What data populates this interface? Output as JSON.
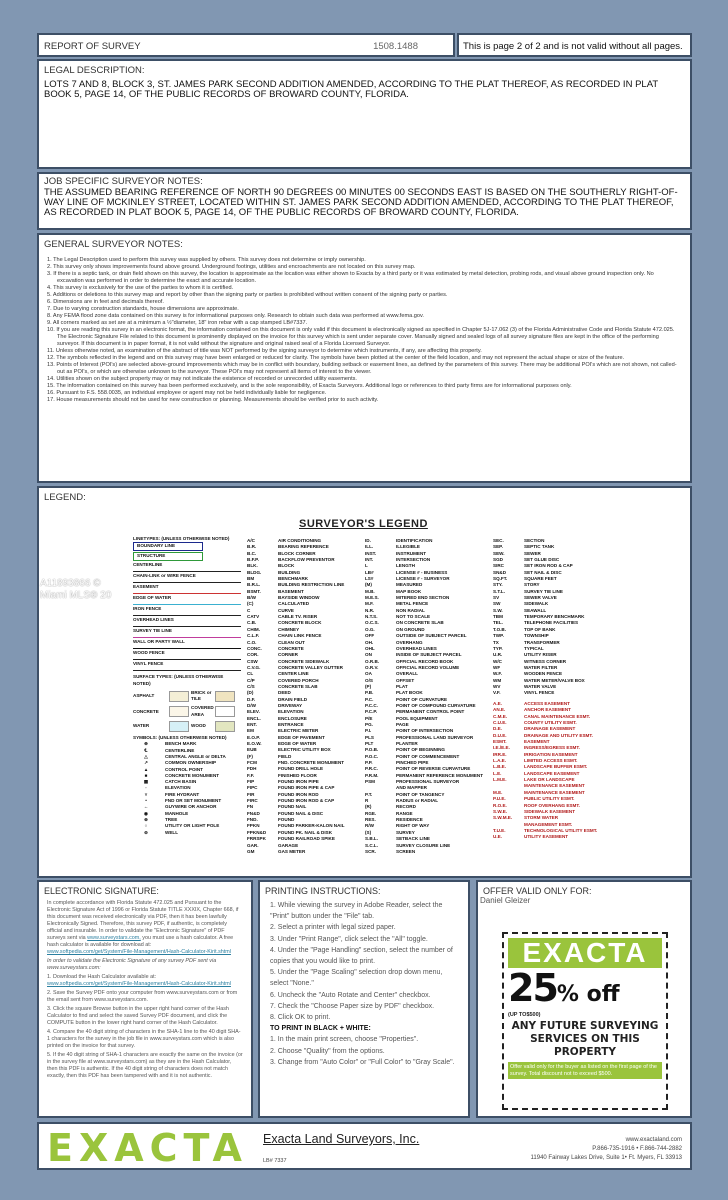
{
  "header": {
    "title": "REPORT OF SURVEY",
    "job_number": "1508.1488",
    "page_notice": "This is page 2 of 2 and is not valid without all pages."
  },
  "legal": {
    "heading": "LEGAL DESCRIPTION:",
    "text": "LOTS 7 AND 8, BLOCK 3, ST. JAMES PARK SECOND ADDITION AMENDED, ACCORDING TO THE PLAT THEREOF, AS RECORDED IN PLAT BOOK 5, PAGE 14, OF THE PUBLIC RECORDS OF BROWARD COUNTY, FLORIDA."
  },
  "job_notes": {
    "heading": "JOB SPECIFIC SURVEYOR NOTES:",
    "text": "THE  ASSUMED BEARING REFERENCE OF NORTH 90 DEGREES 00 MINUTES 00 SECONDS EAST IS BASED ON THE SOUTHERLY RIGHT-OF-WAY LINE OF MCKINLEY STREET, LOCATED WITHIN ST. JAMES PARK SECOND ADDITION AMENDED, ACCORDING TO THE PLAT THEREOF, AS RECORDED IN PLAT BOOK 5, PAGE 14, OF THE PUBLIC RECORDS OF BROWARD COUNTY, FLORIDA."
  },
  "general_notes": {
    "heading": "GENERAL SURVEYOR NOTES:",
    "items": [
      "1.  The Legal Description used to perform this survey was supplied by others. This survey does not determine or imply ownership.",
      "2.  This survey only shows improvements found above ground. Underground footings, utilities and encroachments are not located on this survey map.",
      "3.  If there is a septic tank, or drain field shown on this survey, the location is approximate as the location was either  shown to Exacta by a third party or it was estimated by metal detection, probing rods, and visual above ground inspection only.  No excavation was performed in order to determine the exact and accurate location.",
      "4.  This survey is exclusively for the use of the parties to whom it is certified.",
      "5.  Additions or deletions to this survey map and report by other than the signing party or parties is prohibited without written consent of the signing party or parties.",
      "6.  Dimensions are in feet and decimals thereof.",
      "7.  Due to varying construction standards, house dimensions are approximate.",
      "8.  Any FEMA flood zone data contained on this survey is for informational purposes only. Research to obtain such data was performed at www.fema.gov.",
      "9.  All corners marked as set are at a minimum a ½\"diameter, 18\" iron rebar with a cap stamped LB#7337.",
      "10. If you are reading this survey in an electronic format, the information contained on this document is only valid if this document is electronically signed as specified in Chapter 5J-17.062 (3) of the Florida Administrative Code and Florida Statute 472.025.  The Electronic Signature File related to this document is prominently displayed on the invoice for this survey which is sent under separate cover. Manually signed and sealed logs of all survey signature files are kept in the office of the performing surveyor. If this document is in paper format, it is not valid without the signature and original raised seal of a Florida Licensed Surveyor.",
      "11. Unless otherwise noted, an examination of the abstract of title was NOT performed by the signing surveyor to determine which instruments, if any, are affecting this property.",
      "12. The symbols reflected in the legend and on this survey may have been enlarged or reduced for clarity. The symbols have been plotted at the center of the field location, and may not represent the actual shape or size of the feature.",
      "13. Points of Interest (POI's) are selected above-ground improvements which may be in conflict with boundary, building setback or easement lines, as defined by the parameters of this survey. There may be additional POI's which are not shown, not called-out as POI's, or which are otherwise unknown to the surveyor. These POI's may not represent all items of interest to the viewer.",
      "14. Utilities shown on the subject property may or may not indicate the existence of recorded or unrecorded utility easements.",
      "15. The information contained on this survey has been performed exclusively, and is the sole responsibility, of Exacta Surveyors. Additional logo or references to third party firms are for informational purposes only.",
      "16.  Pursuant to F.S. 558.0035, an individual employee or agent may not be held individually liable for negligence.",
      "17. House measurements should not be used for new construction or planning. Measurements should be verified prior to such activity."
    ]
  },
  "legend": {
    "heading": "LEGEND:",
    "title": "SURVEYOR'S LEGEND",
    "linetypes_heading": "LINETYPES: (UNLESS OTHERWISE NOTED)",
    "linetypes": [
      "BOUNDARY LINE",
      "STRUCTURE",
      "CENTERLINE",
      "CHAIN-LINK or WIRE FENCE",
      "EASEMENT",
      "EDGE OF WATER",
      "IRON FENCE",
      "OVERHEAD LINES",
      "SURVEY TIE LINE",
      "WALL OR PARTY WALL",
      "WOOD FENCE",
      "VINYL FENCE"
    ],
    "surface_heading": "SURFACE TYPES: (UNLESS OTHERWISE NOTED)",
    "surfaces": [
      "ASPHALT",
      "BRICK or TILE",
      "CONCRETE",
      "COVERED AREA",
      "WATER",
      "WOOD"
    ],
    "symbols_heading": "SYMBOLS: (UNLESS OTHERWISE NOTED)",
    "symbols": [
      "BENCH MARK",
      "CENTERLINE",
      "CENTRAL ANGLE or DELTA",
      "COMMON OWNERSHIP",
      "CONTROL POINT",
      "CONCRETE MONUMENT",
      "CATCH BASIN",
      "ELEVATION",
      "FIRE HYDRANT",
      "FND OR SET MONUMENT",
      "GUYWIRE OR ANCHOR",
      "MANHOLE",
      "TREE",
      "UTILITY OR LIGHT POLE",
      "WELL"
    ],
    "col1": [
      [
        "A/C",
        "AIR CONDITIONING"
      ],
      [
        "B.R.",
        "BEARING REFERENCE"
      ],
      [
        "B.C.",
        "BLOCK CORNER"
      ],
      [
        "B.F.P.",
        "BACKFLOW PREVENTOR"
      ],
      [
        "BLK.",
        "BLOCK"
      ],
      [
        "BLDG.",
        "BUILDING"
      ],
      [
        "BM",
        "BENCHMARK"
      ],
      [
        "B.R.L.",
        "BUILDING RESTRICTION LINE"
      ],
      [
        "BSMT.",
        "BASEMENT"
      ],
      [
        "B/W",
        "BAYSIDE WINDOW"
      ],
      [
        "(C)",
        "CALCULATED"
      ],
      [
        "C",
        "CURVE"
      ],
      [
        "CATV",
        "CABLE TV. RISER"
      ],
      [
        "C.B.",
        "CONCRETE BLOCK"
      ],
      [
        "CHIM.",
        "CHIMNEY"
      ],
      [
        "C.L.F.",
        "CHAIN LINK FENCE"
      ],
      [
        "C.O.",
        "CLEAN OUT"
      ],
      [
        "CONC.",
        "CONCRETE"
      ],
      [
        "COR.",
        "CORNER"
      ],
      [
        "CSW",
        "CONCRETE SIDEWALK"
      ],
      [
        "C.V.G.",
        "CONCRETE VALLEY GUTTER"
      ],
      [
        "CL",
        "CENTER LINE"
      ],
      [
        "C/P",
        "COVERED PORCH"
      ],
      [
        "C/S",
        "CONCRETE SLAB"
      ],
      [
        "(D)",
        "DEED"
      ],
      [
        "D.F.",
        "DRAIN FIELD"
      ],
      [
        "D/W",
        "DRIVEWAY"
      ],
      [
        "ELEV.",
        "ELEVATION"
      ],
      [
        "ENCL.",
        "ENCLOSURE"
      ],
      [
        "ENT.",
        "ENTRANCE"
      ],
      [
        "EM",
        "ELECTRIC METER"
      ],
      [
        "E.O.P.",
        "EDGE OF PAVEMENT"
      ],
      [
        "E.O.W.",
        "EDGE OF WATER"
      ],
      [
        "EUB",
        "ELECTRIC UTILITY BOX"
      ],
      [
        "(F)",
        "FIELD"
      ],
      [
        "FCM",
        "FND. CONCRETE MONUMENT"
      ],
      [
        "FDH",
        "FOUND DRILL HOLE"
      ],
      [
        "F.F.",
        "FINISHED FLOOR"
      ],
      [
        "FIP",
        "FOUND IRON PIPE"
      ],
      [
        "FIPC",
        "FOUND IRON PIPE & CAP"
      ],
      [
        "FIR",
        "FOUND IRON ROD"
      ],
      [
        "FIRC",
        "FOUND IRON ROD & CAP"
      ],
      [
        "FN",
        "FOUND NAIL"
      ],
      [
        "FN&D",
        "FOUND NAIL & DISC"
      ],
      [
        "FND.",
        "FOUND"
      ],
      [
        "FPKN",
        "FOUND PARKER-KALON NAIL"
      ],
      [
        "FPKN&D",
        "FOUND PK. NAIL & DISK"
      ],
      [
        "FRRSPK",
        "FOUND RAILROAD SPIKE"
      ],
      [
        "GAR.",
        "GARAGE"
      ],
      [
        "GM",
        "GAS METER"
      ]
    ],
    "col2": [
      [
        "ID.",
        "IDENTIFICATION"
      ],
      [
        "ILL.",
        "ILLEGIBLE"
      ],
      [
        "INST.",
        "INSTRUMENT"
      ],
      [
        "INT.",
        "INTERSECTION"
      ],
      [
        "L",
        "LENGTH"
      ],
      [
        "LB#",
        "LICENSE # - BUSINESS"
      ],
      [
        "LS#",
        "LICENSE # - SURVEYOR"
      ],
      [
        "(M)",
        "MEASURED"
      ],
      [
        "M.B.",
        "MAP BOOK"
      ],
      [
        "M.E.S.",
        "MITERED END SECTION"
      ],
      [
        "M.F.",
        "METAL FENCE"
      ],
      [
        "N.R.",
        "NON RADIAL"
      ],
      [
        "N.T.S.",
        "NOT TO SCALE"
      ],
      [
        "O.C.S.",
        "ON CONCRETE SLAB"
      ],
      [
        "O.G.",
        "ON GROUND"
      ],
      [
        "OFF",
        "OUTSIDE OF SUBJECT PARCEL"
      ],
      [
        "OH.",
        "OVERHANG"
      ],
      [
        "OHL",
        "OVERHEAD LINES"
      ],
      [
        "ON",
        "INSIDE OF SUBJECT PARCEL"
      ],
      [
        "O.R.B.",
        "OFFICIAL RECORD BOOK"
      ],
      [
        "O.R.V.",
        "OFFICIAL RECORD VOLUME"
      ],
      [
        "OA",
        "OVERALL"
      ],
      [
        "O/S",
        "OFFSET"
      ],
      [
        "(P)",
        "PLAT"
      ],
      [
        "P.B.",
        "PLAT BOOK"
      ],
      [
        "P.C.",
        "POINT OF CURVATURE"
      ],
      [
        "P.C.C.",
        "POINT OF COMPOUND CURVATURE"
      ],
      [
        "P.C.P.",
        "PERMANENT CONTROL POINT"
      ],
      [
        "P/E",
        "POOL EQUIPMENT"
      ],
      [
        "PG.",
        "PAGE"
      ],
      [
        "P.I.",
        "POINT OF INTERSECTION"
      ],
      [
        "PLS",
        "PROFESSIONAL LAND SURVEYOR"
      ],
      [
        "PLT",
        "PLANTER"
      ],
      [
        "P.O.B.",
        "POINT OF BEGINNING"
      ],
      [
        "P.O.C.",
        "POINT OF COMMENCEMENT"
      ],
      [
        "P.P.",
        "PINCHED PIPE"
      ],
      [
        "P.R.C.",
        "POINT OF REVERSE CURVATURE"
      ],
      [
        "P.R.M.",
        "PERMANENT REFERENCE MONUMENT"
      ],
      [
        "PSM",
        "PROFESSIONAL SURVEYOR"
      ],
      [
        "",
        "AND MAPPER"
      ],
      [
        "P.T.",
        "POINT OF TANGENCY"
      ],
      [
        "R",
        "RADIUS or RADIAL"
      ],
      [
        "(R)",
        "RECORD"
      ],
      [
        "RGE.",
        "RANGE"
      ],
      [
        "RES.",
        "RESIDENCE"
      ],
      [
        "R/W",
        "RIGHT OF WAY"
      ],
      [
        "(S)",
        "SURVEY"
      ],
      [
        "S.B.L.",
        "SETBACK LINE"
      ],
      [
        "S.C.L.",
        "SURVEY CLOSURE LINE"
      ],
      [
        "SCR.",
        "SCREEN"
      ]
    ],
    "col3": [
      [
        "SEC.",
        "SECTION"
      ],
      [
        "SEP.",
        "SEPTIC TANK"
      ],
      [
        "SEW.",
        "SEWER"
      ],
      [
        "SGD",
        "SET GLUE DISC"
      ],
      [
        "SIRC",
        "SET IRON ROD & CAP"
      ],
      [
        "SN&D",
        "SET NAIL & DISC"
      ],
      [
        "SQ.FT.",
        "SQUARE FEET"
      ],
      [
        "STY.",
        "STORY"
      ],
      [
        "S.T.L.",
        "SURVEY TIE LINE"
      ],
      [
        "SV",
        "SEWER VALVE"
      ],
      [
        "SW",
        "SIDEWALK"
      ],
      [
        "S.W.",
        "SEAWALL"
      ],
      [
        "TBM",
        "TEMPORARY BENCHMARK"
      ],
      [
        "TEL.",
        "TELEPHONE FACILITIES"
      ],
      [
        "T.O.B.",
        "TOP OF BANK"
      ],
      [
        "TWP.",
        "TOWNSHIP"
      ],
      [
        "TX",
        "TRANSFORMER"
      ],
      [
        "TYP.",
        "TYPICAL"
      ],
      [
        "U.R.",
        "UTILITY RISER"
      ],
      [
        "W/C",
        "WITNESS CORNER"
      ],
      [
        "WF",
        "WATER FILTER"
      ],
      [
        "W.F.",
        "WOODEN FENCE"
      ],
      [
        "WM",
        "WATER METER/VALVE BOX"
      ],
      [
        "WV",
        "WATER VALVE"
      ],
      [
        "V.F.",
        "VINYL FENCE"
      ]
    ],
    "col3_easements": [
      [
        "A.E.",
        "ACCESS EASEMENT"
      ],
      [
        "AN.E.",
        "ANCHOR EASEMENT"
      ],
      [
        "C.M.E.",
        "CANAL MAINTENANCE ESMT."
      ],
      [
        "C.U.E.",
        "COUNTY UTILITY ESMT."
      ],
      [
        "D.E.",
        "DRAINAGE EASEMENT"
      ],
      [
        "D.U.E.",
        "DRAINAGE AND UTILITY ESMT."
      ],
      [
        "ESMT.",
        "EASEMENT"
      ],
      [
        "I.E./E.E.",
        "INGRESS/EGRESS ESMT."
      ],
      [
        "IRR.E.",
        "IRRIGATION EASEMENT"
      ],
      [
        "L.A.E.",
        "LIMITED ACCESS ESMT."
      ],
      [
        "L.B.E.",
        "LANDSCAPE BUFFER ESMT."
      ],
      [
        "L.E.",
        "LANDSCAPE EASEMENT"
      ],
      [
        "L.M.E.",
        "LAKE OR LANDSCAPE"
      ],
      [
        "",
        "MAINTENANCE EASEMENT"
      ],
      [
        "M.E.",
        "MAINTENANCE EASEMENT"
      ],
      [
        "P.U.E.",
        "PUBLIC UTILITY ESMT."
      ],
      [
        "R.O.E.",
        "ROOF OVERHANG ESMT."
      ],
      [
        "S.W.E.",
        "SIDEWALK EASEMENT"
      ],
      [
        "S.W.M.E.",
        "STORM WATER"
      ],
      [
        "",
        "MANAGEMENT ESMT."
      ],
      [
        "T.U.E.",
        "TECHNOLOGICAL UTILITY ESMT."
      ],
      [
        "U.E.",
        "UTILITY EASEMENT"
      ]
    ]
  },
  "esig": {
    "heading": "ELECTRONIC SIGNATURE:",
    "p1": "In complete accordance with Florida Statute 472.025 and Pursuant to the Electronic Signature Act of 1996 or Florida Statute TITLE XXXIX, Chapter 668, if this document was received electronically via PDF, then it has been lawfully Electronically Signed. Therefore, this survey PDF, if authentic, is completely official and insurable. In order to validate the \"Electronic Signature\" of PDF surveys sent via",
    "link1": "www.surveystars.com,",
    "p1b": "you must use a hash calculator. A free hash calculator is available for download at:",
    "link2": "www.softpedia.com/get/System/File-Management/Hash-Calculator-Kirit.shtml",
    "p2": "In order to validate the Electronic Signature of any survey PDF sent via www.surveystars.com:",
    "s1": "1. Download the Hash Calculator available at:",
    "s2": "2. Save the Survey PDF onto your computer from www.surveystars.com or from the email sent from www.surveystars.com.",
    "s3": "3. Click the square Browse button in the upper right hand corner of the Hash Calculator to find and select the saved Survey PDF document, and click the COMPUTE button in the lower right hand corner of the Hash Calculator.",
    "s4": "4. Compare the 40 digit string of characters in the SHA-1 line to the 40 digit SHA-1 characters for the survey in the job file in www.surveystars.com which is also printed on the invoice for that survey.",
    "s5": "5. If the 40 digit string of SHA-1 characters are exactly the same on the invoice (or in the survey file at www.surveystars.com) as they are in the Hash Calculator, then this PDF is authentic. If the 40 digit string of characters does not match exactly, then this PDF has been tampered with and it is not authentic."
  },
  "printing": {
    "heading": "PRINTING INSTRUCTIONS:",
    "steps": [
      "1.  While viewing the survey in Adobe Reader, select the \"Print\" button under the \"File\" tab.",
      "2.  Select a printer with legal sized paper.",
      "3.  Under \"Print Range\", click select the \"All\" toggle.",
      "4.  Under the \"Page Handling\" section, select the number of copies that you would like to print.",
      "5.  Under the \"Page Scaling\" selection drop down menu, select \"None.\"",
      "6.  Uncheck the \"Auto Rotate and Center\" checkbox.",
      "7.  Check the \"Choose Paper size by PDF\" checkbox.",
      "8.  Click OK to print."
    ],
    "bw_heading": "TO PRINT IN BLACK + WHITE:",
    "bw_steps": [
      "1.  In the main print screen, choose \"Properties\".",
      "2.  Choose \"Quality\" from the options.",
      "3.  Change from \"Auto Color\" or \"Full Color\" to \"Gray Scale\"."
    ]
  },
  "offer": {
    "heading": "OFFER VALID ONLY FOR:",
    "name": "Daniel Gleizer",
    "brand": "EXACTA",
    "discount": "25",
    "discount_suffix": "% off",
    "cap": "(UP TO$500)",
    "tagline": "ANY FUTURE SURVEYING SERVICES ON THIS PROPERTY",
    "fine": "Offer valid only for the buyer as listed on the first page of the survey.  Total discount not to exceed $500."
  },
  "footer": {
    "logo": "EXACTA",
    "company": "Exacta Land Surveyors, Inc.",
    "license": "LB# 7337",
    "website": "www.exactaland.com",
    "phones": "P.866-735-1916 • F.866-744-2882",
    "address": "11940 Fairway Lakes Drive, Suite 1• Ft. Myers, FL 33913"
  },
  "watermark": "A11893866 © Miami MLS® 20",
  "colors": {
    "page_bg": "#8197b2",
    "border": "#3d4f66",
    "brand_green": "#9ac43c",
    "easement_red": "#b01818"
  }
}
